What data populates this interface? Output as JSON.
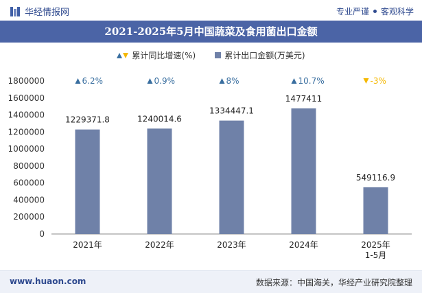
{
  "header": {
    "brand": "华经情报网",
    "tag_left": "专业严谨",
    "tag_right": "客观科学",
    "title": "2021-2025年5月中国蔬菜及食用菌出口金额"
  },
  "legend": {
    "growth_label": "累计同比增速(%)",
    "amount_label": "累计出口金额(万美元)"
  },
  "colors": {
    "bar": "#6f81a8",
    "growth_up": "#3a6fa0",
    "growth_down": "#f5b800",
    "title_bg": "#4b64a6"
  },
  "chart_data": {
    "type": "bar",
    "title": "2021-2025年5月中国蔬菜及食用菌出口金额",
    "categories": [
      "2021年",
      "2022年",
      "2023年",
      "2024年",
      "2025年\n1-5月"
    ],
    "series": [
      {
        "name": "累计出口金额(万美元)",
        "values": [
          1229371.8,
          1240014.6,
          1334447.1,
          1477411,
          549116.9
        ]
      },
      {
        "name": "累计同比增速(%)",
        "values": [
          6.2,
          0.9,
          8,
          10.7,
          -3
        ]
      }
    ],
    "value_labels": [
      "1229371.8",
      "1240014.6",
      "1334447.1",
      "1477411",
      "549116.9"
    ],
    "growth_labels": [
      "6.2%",
      "0.9%",
      "8%",
      "10.7%",
      "-3%"
    ],
    "y_ticks": [
      0,
      200000,
      400000,
      600000,
      800000,
      1000000,
      1200000,
      1400000,
      1600000,
      1800000
    ],
    "ylim": [
      0,
      1800000
    ],
    "xlabel": "",
    "ylabel": ""
  },
  "footer": {
    "site": "www.huaon.com",
    "source": "数据来源：中国海关，华经产业研究院整理"
  }
}
